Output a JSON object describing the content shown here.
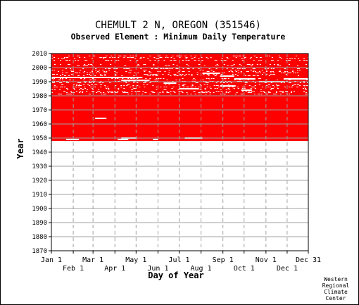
{
  "chart_data": {
    "type": "heatmap",
    "title": "CHEMULT 2 N, OREGON   (351546)",
    "subtitle": "Observed Element : Minimum Daily Temperature",
    "xlabel": "Day of Year",
    "ylabel": "Year",
    "x_ticks_upper": [
      "Jan 1",
      "Mar 1",
      "May 1",
      "Jul 1",
      "Sep 1",
      "Nov 1",
      "Dec 31"
    ],
    "x_ticks_lower": [
      "Feb 1",
      "Apr 1",
      "Jun 1",
      "Aug 1",
      "Oct 1",
      "Dec 1"
    ],
    "x_tick_days_upper": [
      1,
      60,
      121,
      182,
      244,
      305,
      365
    ],
    "x_tick_days_lower": [
      32,
      91,
      152,
      213,
      274,
      335
    ],
    "y_ticks": [
      2010,
      2000,
      1990,
      1980,
      1970,
      1960,
      1950,
      1940,
      1930,
      1920,
      1910,
      1900,
      1890,
      1880,
      1870
    ],
    "xlim": [
      1,
      365
    ],
    "ylim": [
      1870,
      2010
    ],
    "data_fill_color": "#ff0000",
    "missing_color": "#ffffff",
    "grid_color": "#a0a0a0",
    "record_start_year": 1948,
    "record_end_year": 2010,
    "missing_segments": [
      {
        "year": 1949,
        "start_day": 22,
        "end_day": 40
      },
      {
        "year": 1950,
        "start_day": 100,
        "end_day": 122
      },
      {
        "year": 1949,
        "start_day": 95,
        "end_day": 110
      },
      {
        "year": 1949,
        "start_day": 145,
        "end_day": 152
      },
      {
        "year": 1950,
        "start_day": 190,
        "end_day": 215
      },
      {
        "year": 1964,
        "start_day": 63,
        "end_day": 79
      },
      {
        "year": 1993,
        "start_day": 1,
        "end_day": 130
      },
      {
        "year": 1991,
        "start_day": 100,
        "end_day": 140
      },
      {
        "year": 1989,
        "start_day": 160,
        "end_day": 178
      },
      {
        "year": 1996,
        "start_day": 215,
        "end_day": 240
      },
      {
        "year": 1994,
        "start_day": 240,
        "end_day": 260
      },
      {
        "year": 1987,
        "start_day": 240,
        "end_day": 262
      },
      {
        "year": 1992,
        "start_day": 260,
        "end_day": 290
      },
      {
        "year": 1984,
        "start_day": 270,
        "end_day": 285
      },
      {
        "year": 1990,
        "start_day": 295,
        "end_day": 330
      },
      {
        "year": 1992,
        "start_day": 330,
        "end_day": 365
      },
      {
        "year": 1985,
        "start_day": 182,
        "end_day": 210
      }
    ],
    "scattered_missing_years": [
      1981,
      1982,
      1983,
      1984,
      1985,
      1986,
      1987,
      1988,
      1989,
      1990,
      1991,
      1992,
      1994,
      1995,
      1996,
      1997,
      1998,
      1999,
      2001,
      2002,
      2005,
      2006,
      2007,
      2008
    ]
  },
  "credit": [
    "Western",
    "Regional",
    "Climate",
    "Center"
  ]
}
